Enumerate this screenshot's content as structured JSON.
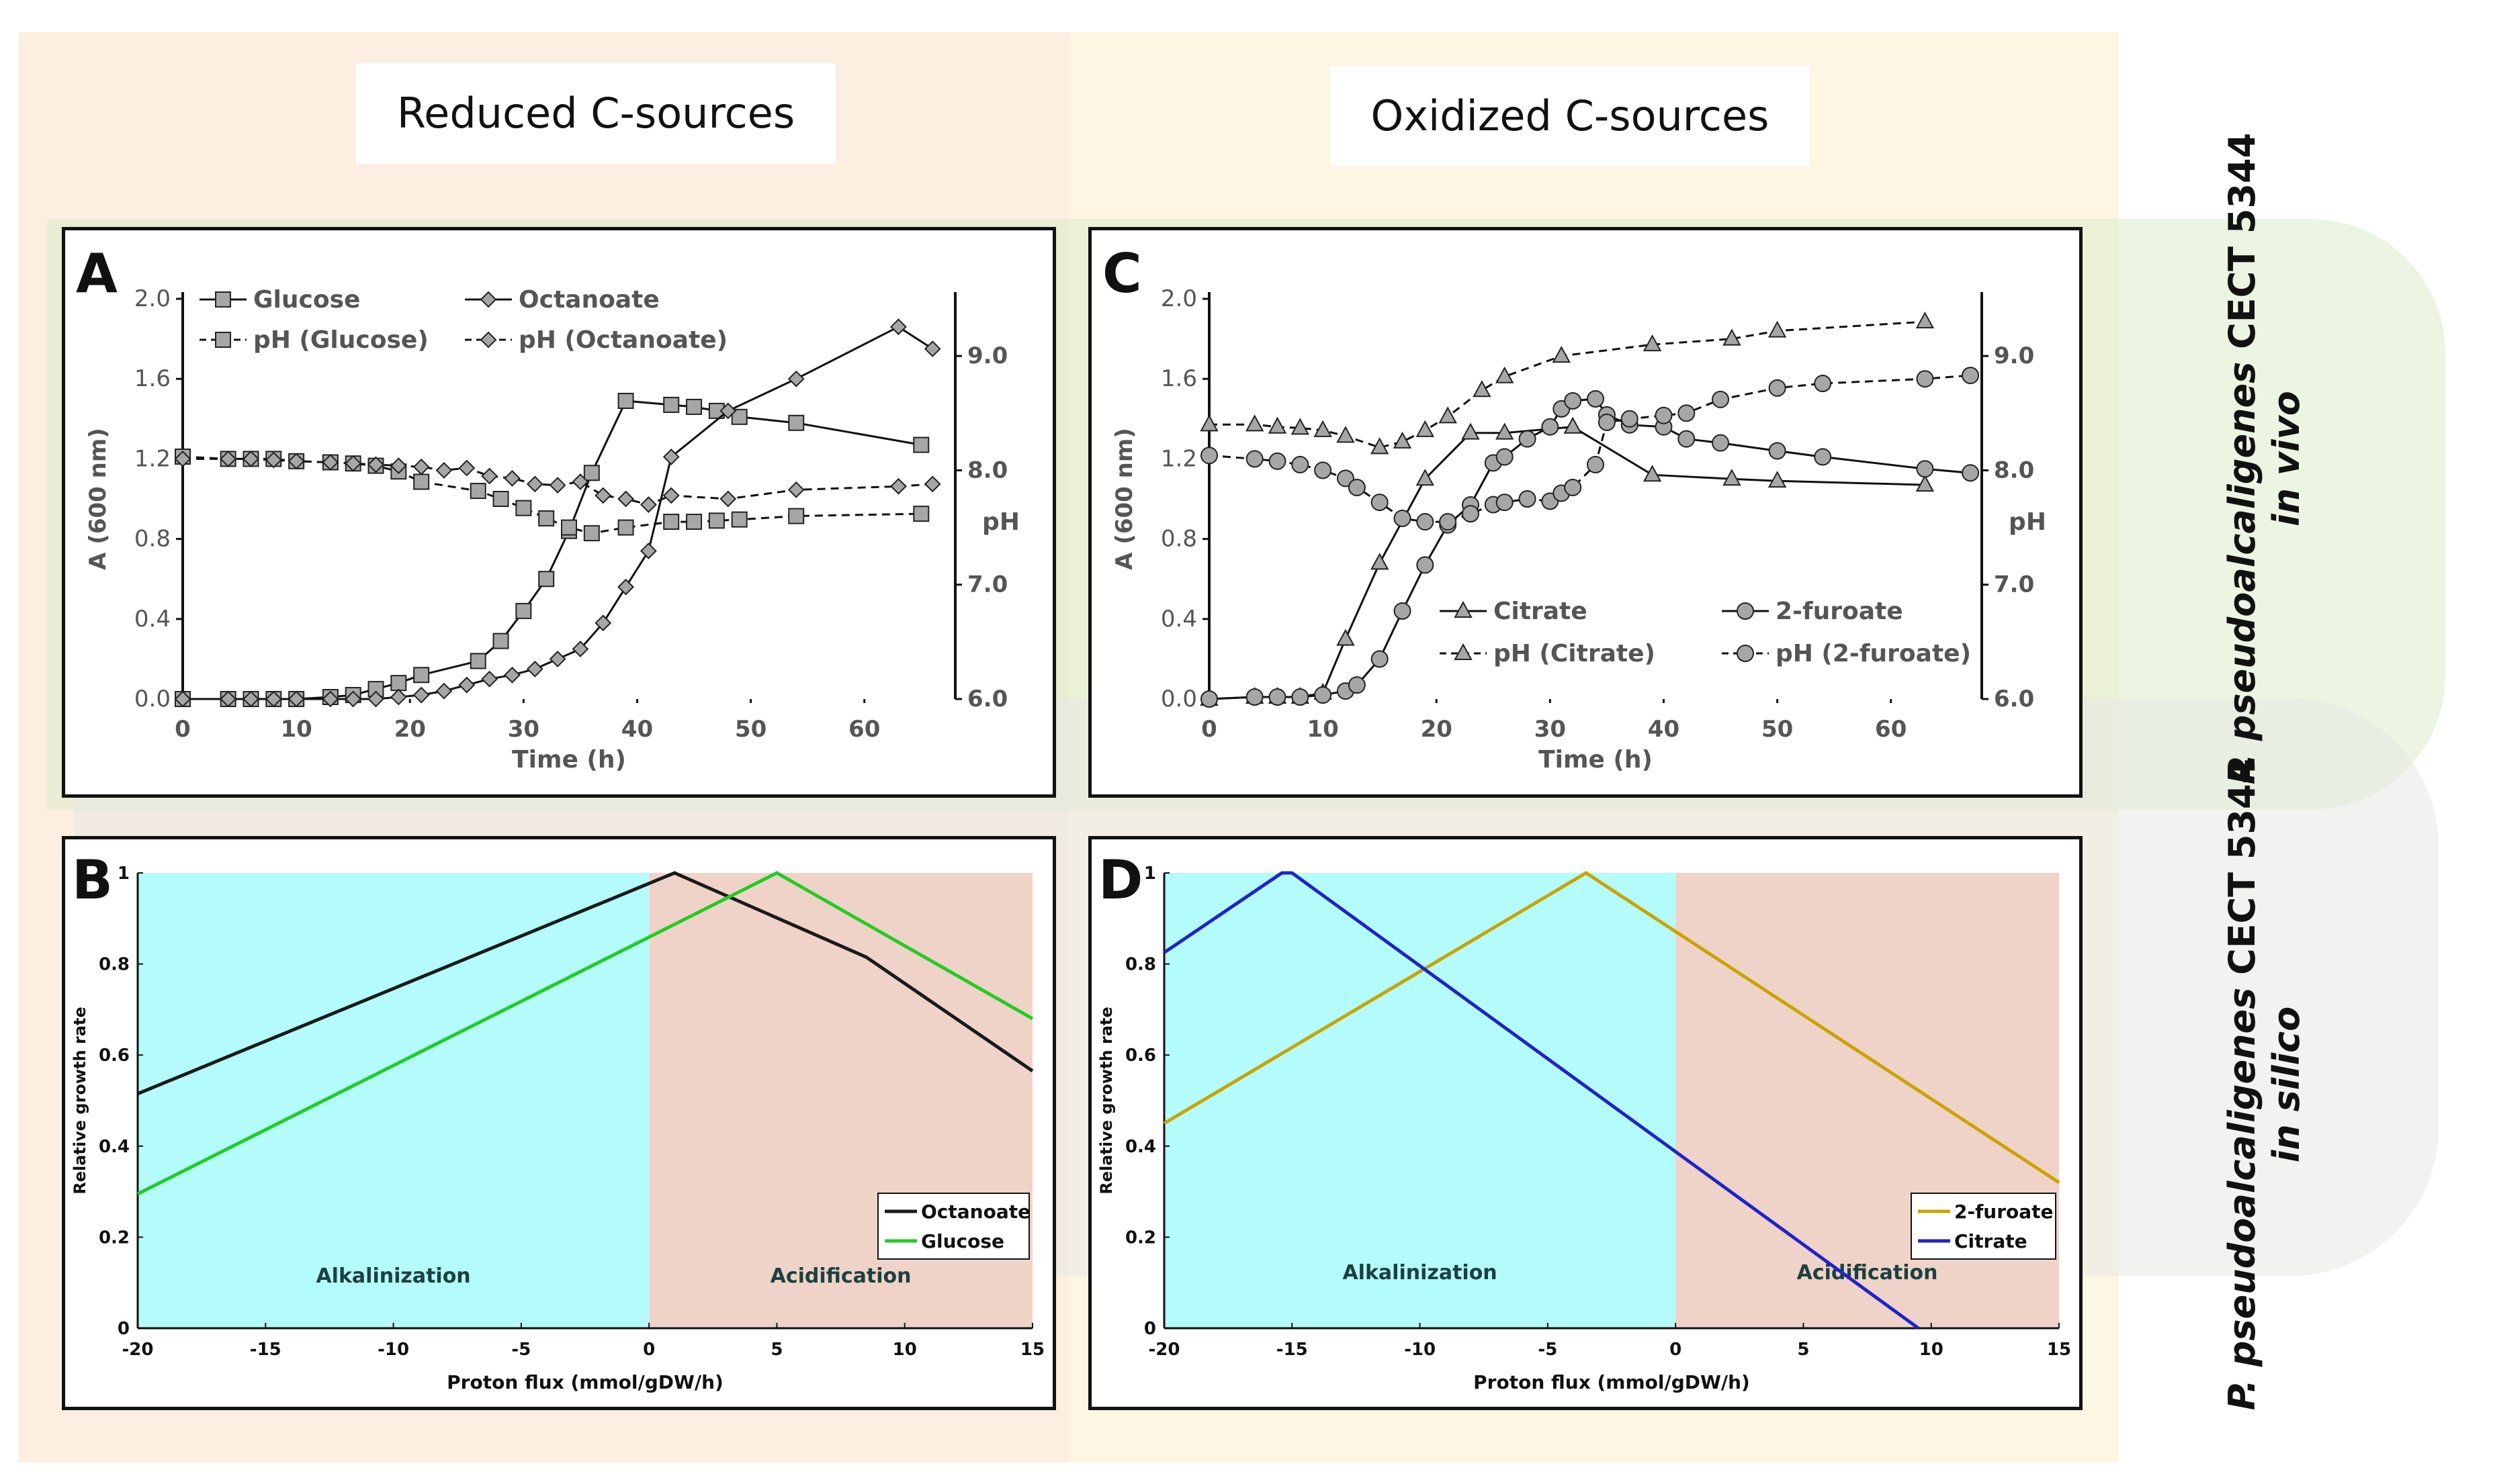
{
  "section_titles": {
    "reduced": "Reduced C-sources",
    "oxidized": "Oxidized C-sources"
  },
  "side_labels": {
    "in_vivo": {
      "strain": "P. pseudoalcaligenes",
      "strain_suffix": "CECT 5344",
      "condition": "in vivo"
    },
    "in_silico": {
      "strain": "P. pseudoalcaligenes",
      "strain_suffix": "CECT 5344",
      "condition": "in silico"
    }
  },
  "colors": {
    "octanoate_model": "#1a1a1a",
    "glucose_model": "#22cc22",
    "furoate_model": "#c9a400",
    "citrate_model": "#1f23c8",
    "alkalinization_region": "#b4fbfb",
    "acidification_region": "#f0d3c8",
    "marker_fill": "#a6a6a6"
  },
  "chart_data": [
    {
      "panel": "A",
      "type": "line",
      "xlabel": "Time (h)",
      "ylabel": "A (600 nm)",
      "y2label": "pH",
      "xlim": [
        0,
        68
      ],
      "ylim": [
        0,
        2.0
      ],
      "y2lim": [
        6.0,
        9.5
      ],
      "xticks": [
        "0",
        "10",
        "20",
        "30",
        "40",
        "50",
        "60"
      ],
      "yticks": [
        "0.0",
        "0.4",
        "0.8",
        "1.2",
        "1.6",
        "2.0"
      ],
      "y2ticks": [
        "6.0",
        "7.0",
        "8.0",
        "9.0"
      ],
      "series": [
        {
          "name": "Glucose",
          "axis": "left",
          "marker": "square",
          "dash": false,
          "x": [
            0,
            4,
            6,
            8,
            10,
            13,
            15,
            17,
            19,
            21,
            26,
            28,
            30,
            32,
            34,
            36,
            39,
            43,
            45,
            47,
            49,
            54,
            65
          ],
          "y": [
            0.0,
            0.0,
            0.0,
            0.0,
            0.0,
            0.01,
            0.02,
            0.05,
            0.08,
            0.12,
            0.19,
            0.29,
            0.44,
            0.6,
            0.84,
            1.13,
            1.49,
            1.47,
            1.46,
            1.44,
            1.41,
            1.38,
            1.27
          ]
        },
        {
          "name": "Octanoate",
          "axis": "left",
          "marker": "diamond",
          "dash": false,
          "x": [
            0,
            4,
            6,
            8,
            10,
            13,
            15,
            17,
            19,
            21,
            23,
            25,
            27,
            29,
            31,
            33,
            35,
            37,
            39,
            41,
            43,
            48,
            54,
            63,
            66
          ],
          "y": [
            0.0,
            0.0,
            0.0,
            0.0,
            0.0,
            0.0,
            0.0,
            0.0,
            0.01,
            0.02,
            0.04,
            0.07,
            0.1,
            0.12,
            0.15,
            0.2,
            0.25,
            0.38,
            0.56,
            0.74,
            1.21,
            1.44,
            1.6,
            1.86,
            1.75
          ]
        },
        {
          "name": "pH (Glucose)",
          "axis": "right",
          "marker": "square",
          "dash": true,
          "x": [
            0,
            4,
            6,
            8,
            10,
            13,
            15,
            17,
            19,
            21,
            26,
            28,
            30,
            32,
            34,
            36,
            39,
            43,
            45,
            47,
            49,
            54,
            65
          ],
          "y": [
            8.12,
            8.1,
            8.1,
            8.1,
            8.08,
            8.07,
            8.06,
            8.04,
            7.99,
            7.9,
            7.82,
            7.75,
            7.67,
            7.58,
            7.5,
            7.45,
            7.5,
            7.55,
            7.55,
            7.56,
            7.57,
            7.6,
            7.62
          ]
        },
        {
          "name": "pH (Octanoate)",
          "axis": "right",
          "marker": "diamond",
          "dash": true,
          "x": [
            0,
            4,
            6,
            8,
            10,
            13,
            15,
            17,
            19,
            21,
            23,
            25,
            27,
            29,
            31,
            33,
            35,
            37,
            39,
            41,
            43,
            48,
            54,
            63,
            66
          ],
          "y": [
            8.1,
            8.1,
            8.1,
            8.09,
            8.08,
            8.07,
            8.06,
            8.05,
            8.04,
            8.03,
            8.0,
            8.02,
            7.95,
            7.93,
            7.88,
            7.87,
            7.9,
            7.78,
            7.75,
            7.7,
            7.78,
            7.75,
            7.83,
            7.86,
            7.88
          ]
        }
      ]
    },
    {
      "panel": "C",
      "type": "line",
      "xlabel": "Time (h)",
      "ylabel": "A (600 nm)",
      "y2label": "pH",
      "xlim": [
        0,
        68
      ],
      "ylim": [
        0,
        2.0
      ],
      "y2lim": [
        6.0,
        9.5
      ],
      "xticks": [
        "0",
        "10",
        "20",
        "30",
        "40",
        "50",
        "60"
      ],
      "yticks": [
        "0.0",
        "0.4",
        "0.8",
        "1.2",
        "1.6",
        "2.0"
      ],
      "y2ticks": [
        "6.0",
        "7.0",
        "8.0",
        "9.0"
      ],
      "series": [
        {
          "name": "Citrate",
          "axis": "left",
          "marker": "triangle",
          "dash": false,
          "x": [
            0,
            4,
            6,
            8,
            10,
            12,
            15,
            19,
            23,
            26,
            32,
            39,
            46,
            50,
            63
          ],
          "y": [
            0.0,
            0.01,
            0.01,
            0.01,
            0.03,
            0.3,
            0.68,
            1.1,
            1.33,
            1.33,
            1.36,
            1.12,
            1.1,
            1.09,
            1.07
          ]
        },
        {
          "name": "2-furoate",
          "axis": "left",
          "marker": "circle",
          "dash": false,
          "x": [
            0,
            4,
            6,
            8,
            10,
            12,
            13,
            15,
            17,
            19,
            21,
            23,
            25,
            26,
            28,
            30,
            31,
            32,
            34,
            35,
            37,
            40,
            42,
            45,
            50,
            54,
            63,
            67
          ],
          "y": [
            0.0,
            0.01,
            0.01,
            0.01,
            0.02,
            0.04,
            0.07,
            0.2,
            0.44,
            0.67,
            0.87,
            0.97,
            1.18,
            1.21,
            1.3,
            1.36,
            1.45,
            1.49,
            1.5,
            1.42,
            1.37,
            1.36,
            1.3,
            1.28,
            1.24,
            1.21,
            1.15,
            1.13
          ]
        },
        {
          "name": "pH (Citrate)",
          "axis": "right",
          "marker": "triangle",
          "dash": true,
          "x": [
            0,
            4,
            6,
            8,
            10,
            12,
            15,
            17,
            19,
            21,
            24,
            26,
            31,
            39,
            46,
            50,
            63
          ],
          "y": [
            8.4,
            8.4,
            8.38,
            8.37,
            8.35,
            8.3,
            8.2,
            8.25,
            8.35,
            8.47,
            8.7,
            8.82,
            9.0,
            9.1,
            9.15,
            9.22,
            9.3
          ]
        },
        {
          "name": "pH (2-furoate)",
          "axis": "right",
          "marker": "circle",
          "dash": true,
          "x": [
            0,
            4,
            6,
            8,
            10,
            12,
            13,
            15,
            17,
            19,
            21,
            23,
            25,
            26,
            28,
            30,
            31,
            32,
            34,
            35,
            37,
            40,
            42,
            45,
            50,
            54,
            63,
            67
          ],
          "y": [
            8.13,
            8.1,
            8.08,
            8.05,
            8.0,
            7.93,
            7.85,
            7.72,
            7.58,
            7.55,
            7.55,
            7.62,
            7.7,
            7.72,
            7.75,
            7.73,
            7.8,
            7.85,
            8.05,
            8.42,
            8.45,
            8.48,
            8.5,
            8.62,
            8.72,
            8.76,
            8.8,
            8.83
          ]
        }
      ]
    },
    {
      "panel": "B",
      "type": "line",
      "xlabel": "Proton flux (mmol/gDW/h)",
      "ylabel": "Relative growth rate",
      "xlim": [
        -20,
        15
      ],
      "ylim": [
        0,
        1
      ],
      "xticks": [
        "-20",
        "-15",
        "-10",
        "-5",
        "0",
        "5",
        "10",
        "15"
      ],
      "yticks": [
        "0",
        "0.2",
        "0.4",
        "0.6",
        "0.8",
        "1"
      ],
      "regions": [
        {
          "label": "Alkalinization",
          "x": [
            -20,
            0
          ]
        },
        {
          "label": "Acidification",
          "x": [
            0,
            15
          ]
        }
      ],
      "series": [
        {
          "name": "Octanoate",
          "x": [
            -20,
            1,
            8.5,
            15
          ],
          "y": [
            0.515,
            1.0,
            0.815,
            0.565
          ]
        },
        {
          "name": "Glucose",
          "x": [
            -20,
            5,
            15
          ],
          "y": [
            0.295,
            1.0,
            0.68
          ]
        }
      ]
    },
    {
      "panel": "D",
      "type": "line",
      "xlabel": "Proton flux (mmol/gDW/h)",
      "ylabel": "Relative growth rate",
      "xlim": [
        -20,
        15
      ],
      "ylim": [
        0,
        1
      ],
      "xticks": [
        "-20",
        "-15",
        "-10",
        "-5",
        "0",
        "5",
        "10",
        "15"
      ],
      "yticks": [
        "0",
        "0.2",
        "0.4",
        "0.6",
        "0.8",
        "1"
      ],
      "regions": [
        {
          "label": "Alkalinization",
          "x": [
            -20,
            0
          ]
        },
        {
          "label": "Acidification",
          "x": [
            0,
            15
          ]
        }
      ],
      "series": [
        {
          "name": "2-furoate",
          "x": [
            -20,
            -3.5,
            15
          ],
          "y": [
            0.45,
            1.0,
            0.32
          ]
        },
        {
          "name": "Citrate",
          "x": [
            -20,
            -15.4,
            -15,
            9.5
          ],
          "y": [
            0.825,
            1.0,
            1.0,
            0.0
          ]
        }
      ]
    }
  ]
}
